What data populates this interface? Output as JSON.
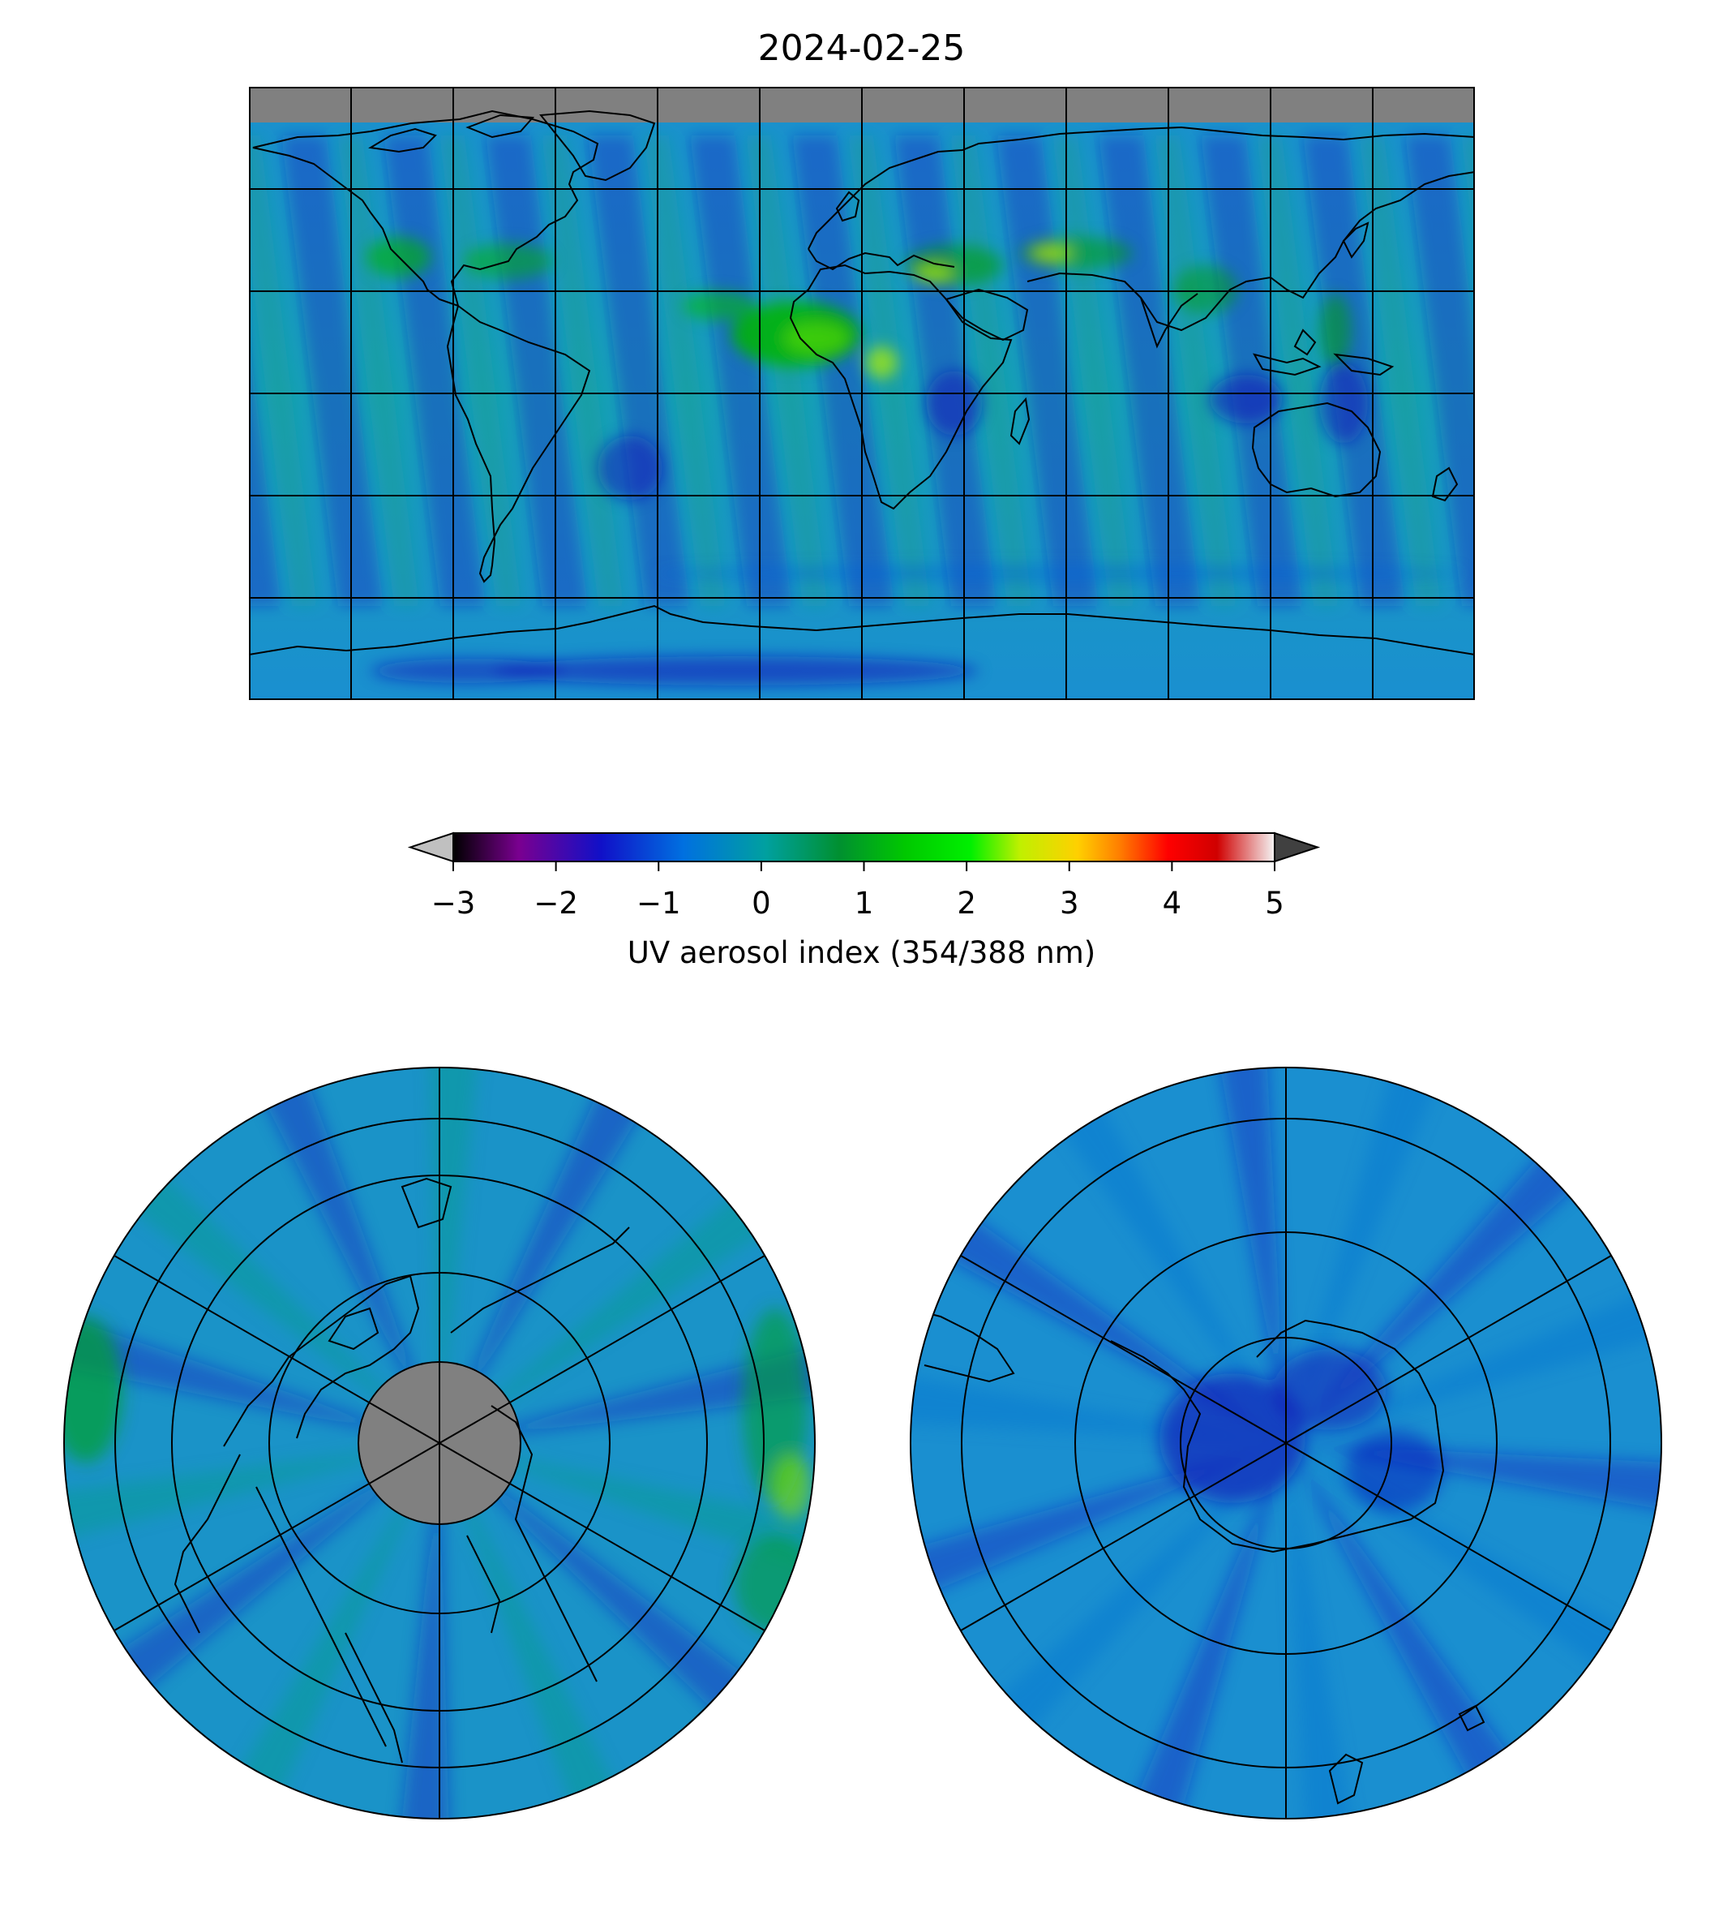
{
  "title": "2024-02-25",
  "colorbar": {
    "label": "UV aerosol index (354/388 nm)",
    "min": -3,
    "max": 5,
    "extend": "both",
    "under_color": "#c0c0c0",
    "over_color": "#404040",
    "ticks": [
      "−3",
      "−2",
      "−1",
      "0",
      "1",
      "2",
      "3",
      "4",
      "5"
    ],
    "tick_values": [
      -3,
      -2,
      -1,
      0,
      1,
      2,
      3,
      4,
      5
    ],
    "colormap": [
      {
        "v": 0.0,
        "c": "#000000"
      },
      {
        "v": 0.08,
        "c": "#7a0090"
      },
      {
        "v": 0.18,
        "c": "#1010c8"
      },
      {
        "v": 0.28,
        "c": "#0070e0"
      },
      {
        "v": 0.38,
        "c": "#00a0a0"
      },
      {
        "v": 0.47,
        "c": "#009030"
      },
      {
        "v": 0.55,
        "c": "#00c800"
      },
      {
        "v": 0.63,
        "c": "#00f000"
      },
      {
        "v": 0.69,
        "c": "#c0f000"
      },
      {
        "v": 0.76,
        "c": "#ffd000"
      },
      {
        "v": 0.81,
        "c": "#ff8000"
      },
      {
        "v": 0.87,
        "c": "#ff0000"
      },
      {
        "v": 0.93,
        "c": "#d00000"
      },
      {
        "v": 1.0,
        "c": "#f4f4f4"
      }
    ]
  },
  "maps": {
    "global": {
      "projection": "plate-carree",
      "gridlines": true,
      "no_data_color": "#808080"
    },
    "north_polar": {
      "projection": "north-polar-stereographic",
      "gridlines": true,
      "no_data_color": "#808080"
    },
    "south_polar": {
      "projection": "south-polar-stereographic",
      "gridlines": true
    }
  },
  "colors": {
    "background_field": "#1a8fd0",
    "coastline": "#000000"
  }
}
